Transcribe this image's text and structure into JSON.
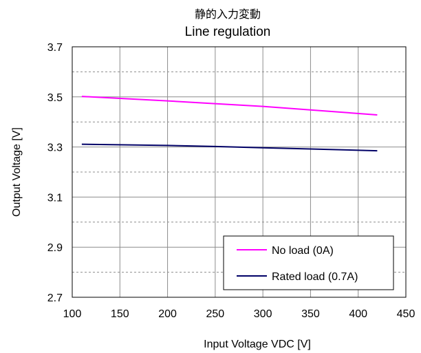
{
  "chart_data": {
    "type": "line",
    "title": "静的入力変動",
    "subtitle": "Line regulation",
    "xlabel": "Input Voltage VDC [V]",
    "ylabel": "Output Voltage [V]",
    "xlim": [
      100,
      450
    ],
    "ylim": [
      2.7,
      3.7
    ],
    "xticks": [
      100,
      150,
      200,
      250,
      300,
      350,
      400,
      450
    ],
    "yticks": [
      2.7,
      2.9,
      3.1,
      3.3,
      3.5,
      3.7
    ],
    "ytick_labels": [
      "2.7",
      "2.9",
      "3.1",
      "3.3",
      "3.5",
      "3.7"
    ],
    "grid": {
      "x_solid": true,
      "y_major_solid": true,
      "y_minor_dashed": true
    },
    "legend_position": "bottom-right",
    "series": [
      {
        "name": "No load (0A)",
        "color": "#ff00ff",
        "x": [
          110,
          200,
          240,
          300,
          350,
          420
        ],
        "y": [
          3.502,
          3.484,
          3.475,
          3.462,
          3.448,
          3.428
        ]
      },
      {
        "name": "Rated load (0.7A)",
        "color": "#000066",
        "x": [
          110,
          200,
          250,
          300,
          350,
          420
        ],
        "y": [
          3.311,
          3.306,
          3.302,
          3.297,
          3.292,
          3.285
        ]
      }
    ]
  }
}
